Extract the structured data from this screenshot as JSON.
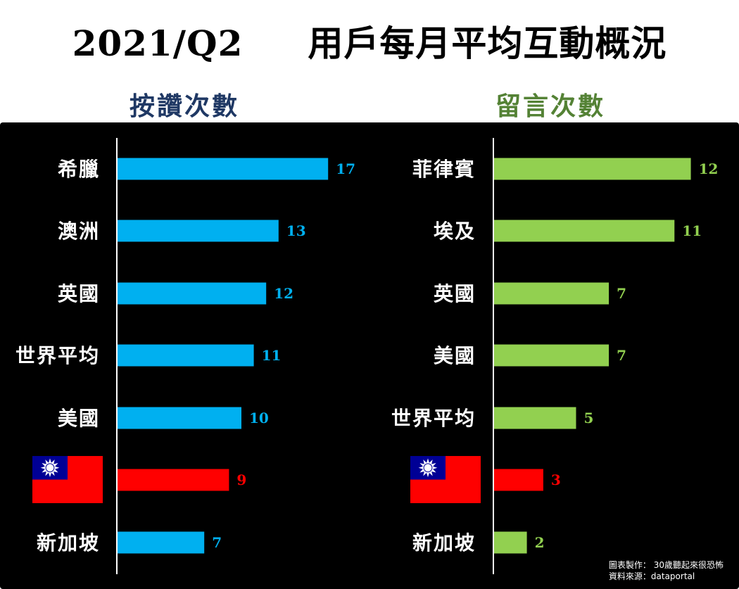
{
  "title": "2021/Q2     用戶每月平均互動概況",
  "footer": {
    "line1": "圖表製作： 30歲聽起來很恐怖",
    "line2": "資料來源：dataportal"
  },
  "colors": {
    "likes": "#00b0f0",
    "comments": "#92d050",
    "highlight": "#ff0000",
    "axis": "#ffffff",
    "label": "#ffffff",
    "likes_title": "#1f3864",
    "comments_title": "#548235"
  },
  "chart_data": [
    {
      "type": "bar",
      "orientation": "horizontal",
      "title": "按讚次數",
      "categories": [
        "希臘",
        "澳洲",
        "英國",
        "世界平均",
        "美國",
        "",
        "新加坡"
      ],
      "category_icons": [
        "",
        "",
        "",
        "",
        "",
        "taiwan-flag-icon",
        ""
      ],
      "values": [
        17,
        13,
        12,
        11,
        10,
        9,
        7
      ],
      "highlight_index": 5,
      "xlim": [
        0,
        25
      ],
      "grid": false,
      "legend": "none"
    },
    {
      "type": "bar",
      "orientation": "horizontal",
      "title": "留言次數",
      "categories": [
        "菲律賓",
        "埃及",
        "英國",
        "美國",
        "世界平均",
        "",
        "新加坡"
      ],
      "category_icons": [
        "",
        "",
        "",
        "",
        "",
        "taiwan-flag-icon",
        ""
      ],
      "values": [
        12,
        11,
        7,
        7,
        5,
        3,
        2
      ],
      "highlight_index": 5,
      "xlim": [
        0,
        17
      ],
      "grid": false,
      "legend": "none"
    }
  ]
}
